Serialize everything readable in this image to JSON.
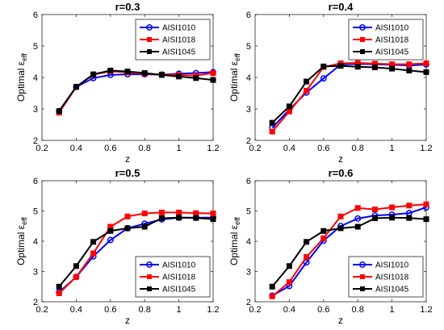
{
  "chart_data": [
    {
      "type": "line",
      "title": "r=0.3",
      "xlabel": "z",
      "ylabel": "Optimal ε_eff",
      "ylabel_main": "Optimal ε",
      "ylabel_sub": "eff",
      "xlim": [
        0.2,
        1.2
      ],
      "ylim": [
        2,
        6
      ],
      "xticks": [
        "0.2",
        "0.4",
        "0.6",
        "0.8",
        "1",
        "1.2"
      ],
      "yticks": [
        "2",
        "3",
        "4",
        "5",
        "6"
      ],
      "legend_position": "top-right",
      "x": [
        0.3,
        0.4,
        0.5,
        0.6,
        0.7,
        0.8,
        0.9,
        1.0,
        1.1,
        1.2
      ],
      "series": [
        {
          "name": "AISI1010",
          "color": "#0000ff",
          "marker": "circle",
          "values": [
            2.93,
            3.7,
            3.98,
            4.08,
            4.1,
            4.1,
            4.09,
            4.12,
            4.14,
            4.17
          ]
        },
        {
          "name": "AISI1018",
          "color": "#ff0000",
          "marker": "square",
          "values": [
            2.88,
            3.7,
            4.09,
            4.2,
            4.16,
            4.12,
            4.09,
            4.08,
            4.06,
            4.14
          ]
        },
        {
          "name": "AISI1045",
          "color": "#000000",
          "marker": "square",
          "values": [
            2.93,
            3.7,
            4.1,
            4.22,
            4.19,
            4.14,
            4.08,
            4.03,
            3.98,
            3.92
          ]
        }
      ]
    },
    {
      "type": "line",
      "title": "r=0.4",
      "xlabel": "z",
      "ylabel": "Optimal ε_eff",
      "ylabel_main": "Optimal ε",
      "ylabel_sub": "eff",
      "xlim": [
        0.2,
        1.2
      ],
      "ylim": [
        2,
        6
      ],
      "xticks": [
        "0.2",
        "0.4",
        "0.6",
        "0.8",
        "1",
        "1.2"
      ],
      "yticks": [
        "2",
        "3",
        "4",
        "5",
        "6"
      ],
      "legend_position": "top-right",
      "x": [
        0.3,
        0.4,
        0.5,
        0.6,
        0.7,
        0.8,
        0.9,
        1.0,
        1.1,
        1.2
      ],
      "series": [
        {
          "name": "AISI1010",
          "color": "#0000ff",
          "marker": "circle",
          "values": [
            2.4,
            2.98,
            3.52,
            3.97,
            4.41,
            4.43,
            4.42,
            4.4,
            4.38,
            4.41
          ]
        },
        {
          "name": "AISI1018",
          "color": "#ff0000",
          "marker": "square",
          "values": [
            2.28,
            2.92,
            3.58,
            4.33,
            4.45,
            4.46,
            4.44,
            4.42,
            4.42,
            4.45
          ]
        },
        {
          "name": "AISI1045",
          "color": "#000000",
          "marker": "square",
          "values": [
            2.56,
            3.08,
            3.87,
            4.35,
            4.37,
            4.34,
            4.32,
            4.28,
            4.22,
            4.17
          ]
        }
      ]
    },
    {
      "type": "line",
      "title": "r=0.5",
      "xlabel": "z",
      "ylabel": "Optimal ε_eff",
      "ylabel_main": "Optimal ε",
      "ylabel_sub": "eff",
      "xlim": [
        0.2,
        1.2
      ],
      "ylim": [
        2,
        6
      ],
      "xticks": [
        "0.2",
        "0.4",
        "0.6",
        "0.8",
        "1",
        "1.2"
      ],
      "yticks": [
        "2",
        "3",
        "4",
        "5",
        "6"
      ],
      "legend_position": "bottom-right",
      "x": [
        0.3,
        0.4,
        0.5,
        0.6,
        0.7,
        0.8,
        0.9,
        1.0,
        1.1,
        1.2
      ],
      "series": [
        {
          "name": "AISI1010",
          "color": "#0000ff",
          "marker": "circle",
          "values": [
            2.32,
            2.82,
            3.5,
            4.04,
            4.43,
            4.58,
            4.72,
            4.78,
            4.78,
            4.78
          ]
        },
        {
          "name": "AISI1018",
          "color": "#ff0000",
          "marker": "square",
          "values": [
            2.28,
            2.82,
            3.6,
            4.48,
            4.82,
            4.92,
            4.95,
            4.95,
            4.93,
            4.92
          ]
        },
        {
          "name": "AISI1045",
          "color": "#000000",
          "marker": "square",
          "values": [
            2.5,
            3.18,
            3.98,
            4.34,
            4.43,
            4.48,
            4.76,
            4.78,
            4.77,
            4.73
          ]
        }
      ]
    },
    {
      "type": "line",
      "title": "r=0.6",
      "xlabel": "z",
      "ylabel": "Optimal ε_eff",
      "ylabel_main": "Optimal ε",
      "ylabel_sub": "eff",
      "xlim": [
        0.2,
        1.2
      ],
      "ylim": [
        2,
        6
      ],
      "xticks": [
        "0.2",
        "0.4",
        "0.6",
        "0.8",
        "1",
        "1.2"
      ],
      "yticks": [
        "2",
        "3",
        "4",
        "5",
        "6"
      ],
      "legend_position": "bottom-right",
      "x": [
        0.3,
        0.4,
        0.5,
        0.6,
        0.7,
        0.8,
        0.9,
        1.0,
        1.1,
        1.2
      ],
      "series": [
        {
          "name": "AISI1010",
          "color": "#0000ff",
          "marker": "circle",
          "values": [
            2.2,
            2.52,
            3.3,
            4.02,
            4.5,
            4.75,
            4.85,
            4.88,
            4.93,
            5.12
          ]
        },
        {
          "name": "AISI1018",
          "color": "#ff0000",
          "marker": "square",
          "values": [
            2.18,
            2.65,
            3.48,
            4.1,
            4.82,
            5.1,
            5.05,
            5.12,
            5.18,
            5.22
          ]
        },
        {
          "name": "AISI1045",
          "color": "#000000",
          "marker": "square",
          "values": [
            2.5,
            3.18,
            3.98,
            4.34,
            4.43,
            4.48,
            4.76,
            4.78,
            4.77,
            4.73
          ]
        }
      ]
    }
  ]
}
